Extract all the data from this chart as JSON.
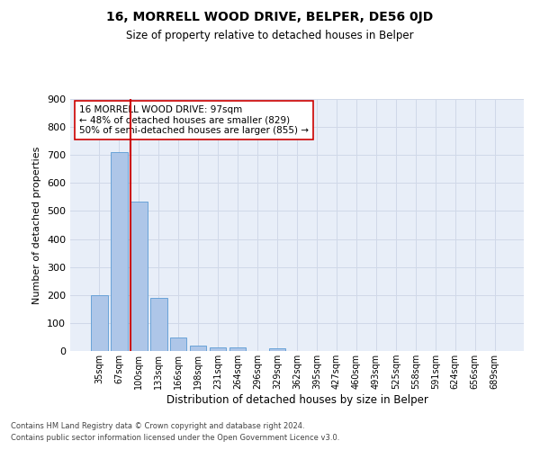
{
  "title": "16, MORRELL WOOD DRIVE, BELPER, DE56 0JD",
  "subtitle": "Size of property relative to detached houses in Belper",
  "xlabel": "Distribution of detached houses by size in Belper",
  "ylabel": "Number of detached properties",
  "footnote1": "Contains HM Land Registry data © Crown copyright and database right 2024.",
  "footnote2": "Contains public sector information licensed under the Open Government Licence v3.0.",
  "bin_labels": [
    "35sqm",
    "67sqm",
    "100sqm",
    "133sqm",
    "166sqm",
    "198sqm",
    "231sqm",
    "264sqm",
    "296sqm",
    "329sqm",
    "362sqm",
    "395sqm",
    "427sqm",
    "460sqm",
    "493sqm",
    "525sqm",
    "558sqm",
    "591sqm",
    "624sqm",
    "656sqm",
    "689sqm"
  ],
  "bar_values": [
    200,
    711,
    533,
    191,
    48,
    18,
    14,
    12,
    0,
    10,
    0,
    0,
    0,
    0,
    0,
    0,
    0,
    0,
    0,
    0,
    0
  ],
  "bar_color": "#aec6e8",
  "bar_edge_color": "#5a9ad4",
  "grid_color": "#d0d8e8",
  "background_color": "#e8eef8",
  "vline_x_index": 2,
  "vline_color": "#cc0000",
  "annotation_text": "16 MORRELL WOOD DRIVE: 97sqm\n← 48% of detached houses are smaller (829)\n50% of semi-detached houses are larger (855) →",
  "annotation_box_color": "#ffffff",
  "annotation_box_edge": "#cc0000",
  "ylim": [
    0,
    900
  ],
  "yticks": [
    0,
    100,
    200,
    300,
    400,
    500,
    600,
    700,
    800,
    900
  ]
}
